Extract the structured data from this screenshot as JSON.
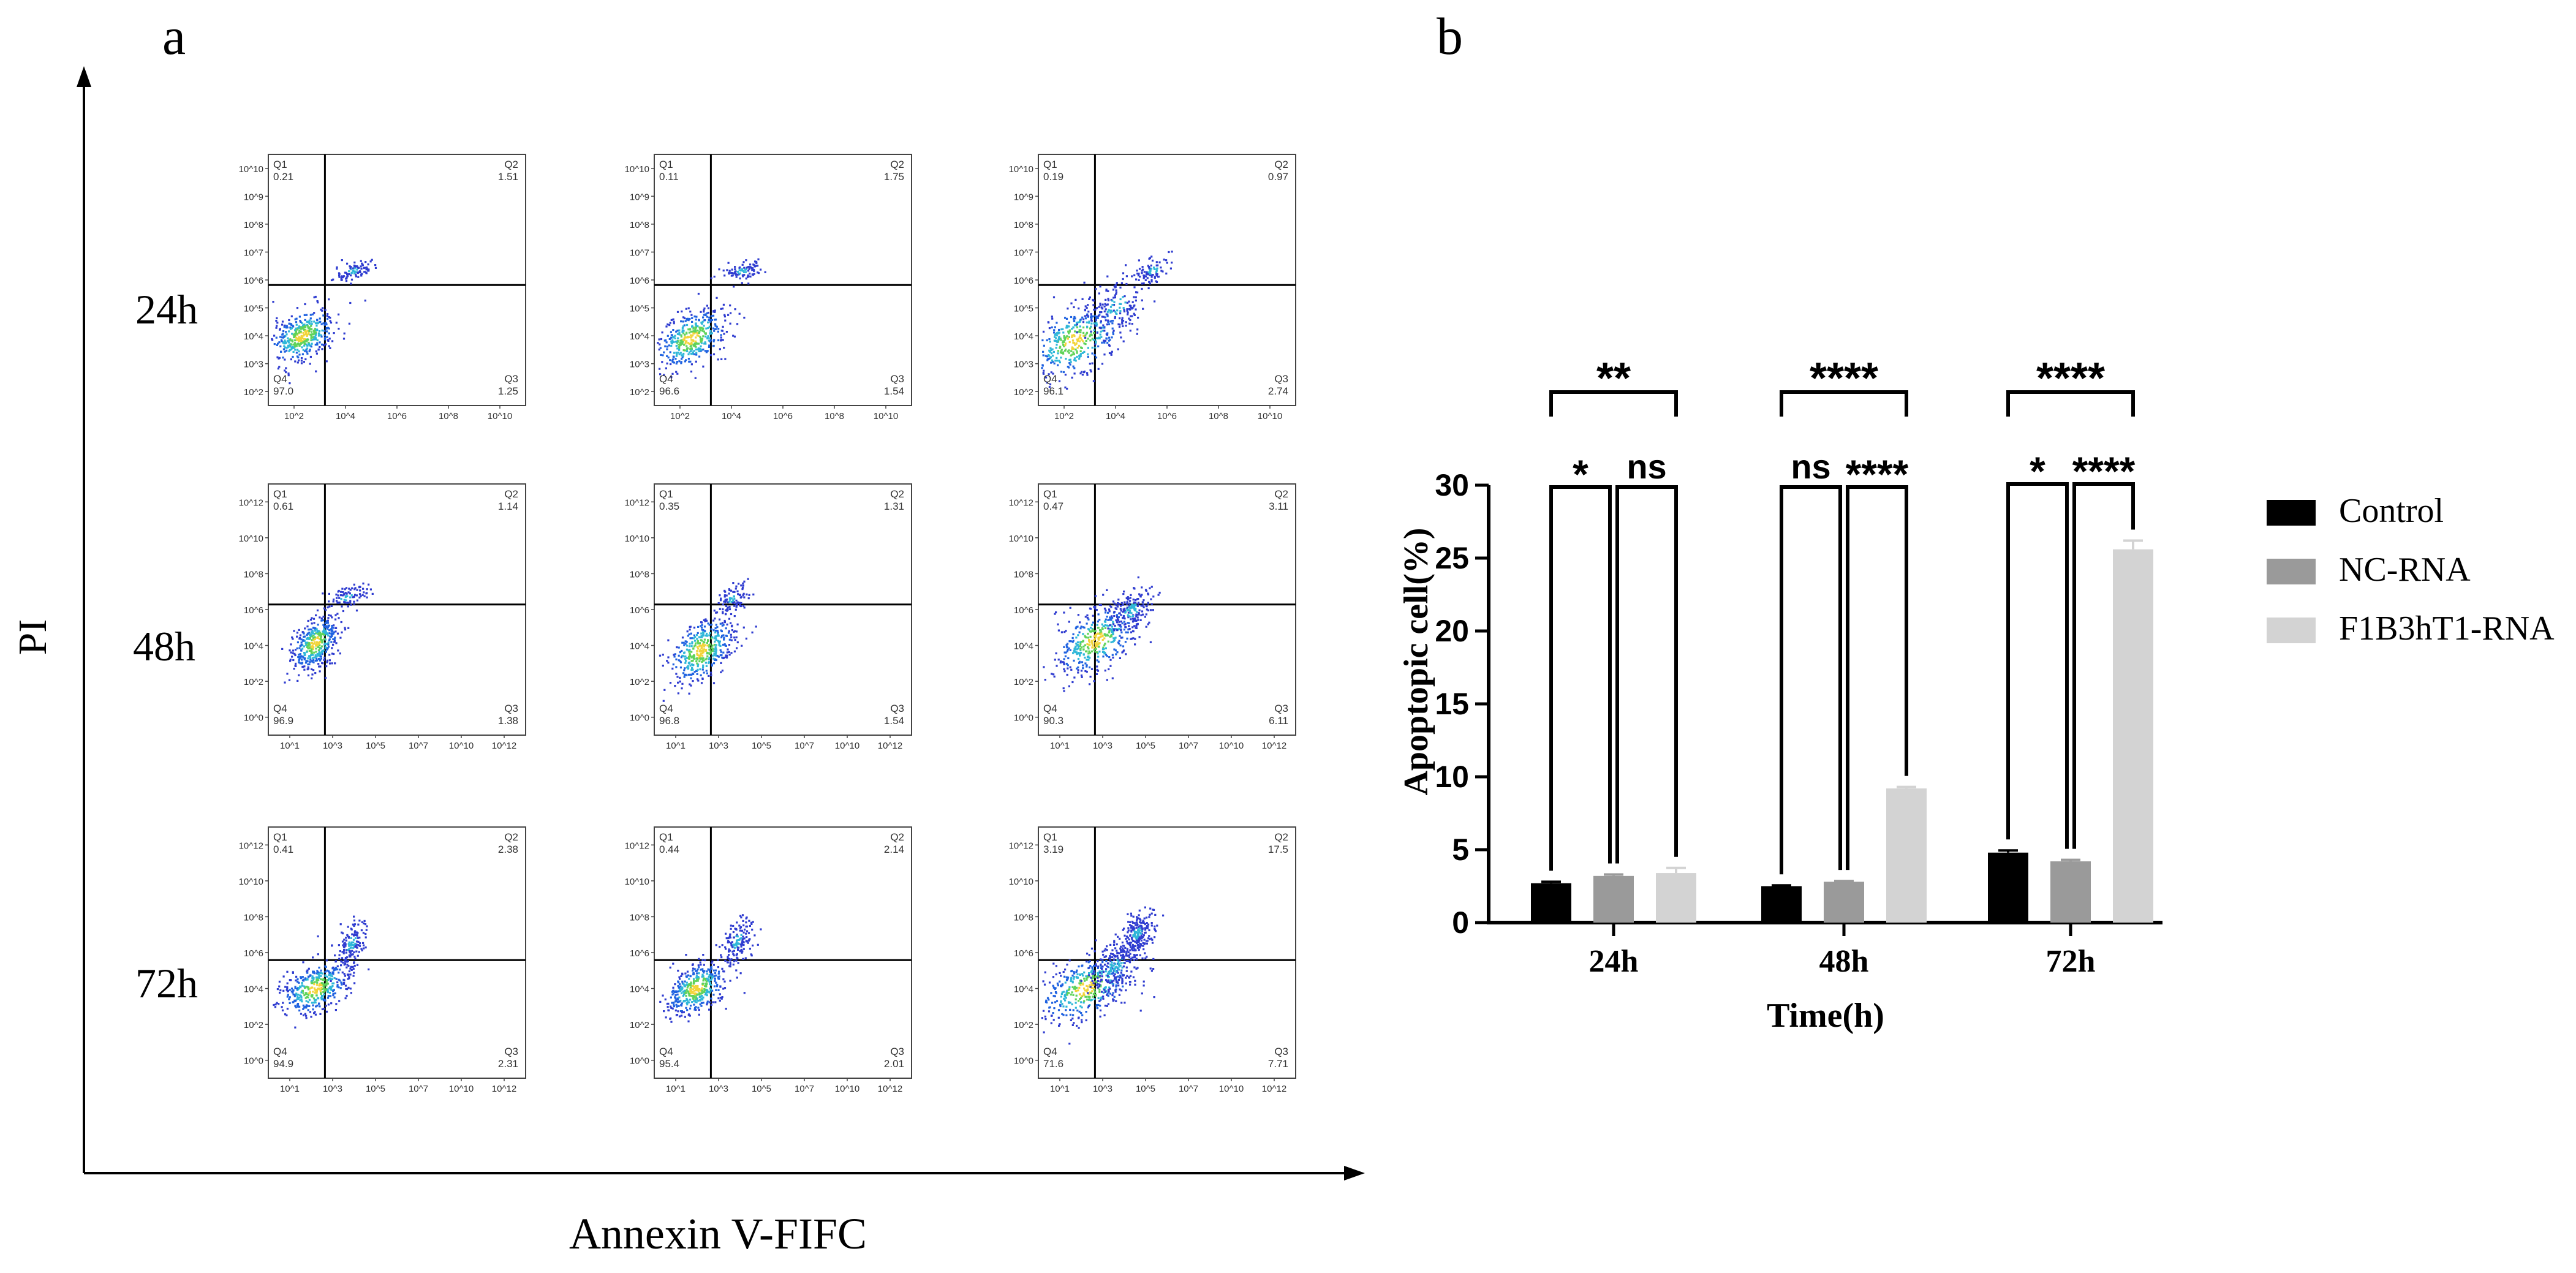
{
  "panel_a": {
    "label": "a",
    "x_axis_label": "Annexin V-FIFC",
    "y_axis_label": "PI",
    "row_labels": [
      "24h",
      "48h",
      "72h"
    ],
    "quadrant_names": [
      "Q1",
      "Q2",
      "Q3",
      "Q4"
    ],
    "plots": [
      {
        "row": 0,
        "col": 0,
        "Q1": "0.21",
        "Q2": "1.51",
        "Q3": "1.25",
        "Q4": "97.0"
      },
      {
        "row": 0,
        "col": 1,
        "Q1": "0.11",
        "Q2": "1.75",
        "Q3": "1.54",
        "Q4": "96.6"
      },
      {
        "row": 0,
        "col": 2,
        "Q1": "0.19",
        "Q2": "0.97",
        "Q3": "2.74",
        "Q4": "96.1"
      },
      {
        "row": 1,
        "col": 0,
        "Q1": "0.61",
        "Q2": "1.14",
        "Q3": "1.38",
        "Q4": "96.9"
      },
      {
        "row": 1,
        "col": 1,
        "Q1": "0.35",
        "Q2": "1.31",
        "Q3": "1.54",
        "Q4": "96.8"
      },
      {
        "row": 1,
        "col": 2,
        "Q1": "0.47",
        "Q2": "3.11",
        "Q3": "6.11",
        "Q4": "90.3"
      },
      {
        "row": 2,
        "col": 0,
        "Q1": "0.41",
        "Q2": "2.38",
        "Q3": "2.31",
        "Q4": "94.9"
      },
      {
        "row": 2,
        "col": 1,
        "Q1": "0.44",
        "Q2": "2.14",
        "Q3": "2.01",
        "Q4": "95.4"
      },
      {
        "row": 2,
        "col": 2,
        "Q1": "3.19",
        "Q2": "17.5",
        "Q3": "7.71",
        "Q4": "71.6"
      }
    ],
    "axis_ticks": {
      "row1_y": [
        "10^2",
        "10^3",
        "10^4",
        "10^5",
        "10^6",
        "10^7",
        "10^8",
        "10^9",
        "10^10"
      ],
      "row1_x": [
        "10^2",
        "10^4",
        "10^6",
        "10^8",
        "10^10"
      ],
      "row23_y": [
        "10^0",
        "10^2",
        "10^4",
        "10^6",
        "10^8",
        "10^10",
        "10^12"
      ],
      "row23_x": [
        "10^1",
        "10^3",
        "10^5",
        "10^7",
        "10^10",
        "10^12"
      ]
    }
  },
  "chart_data": {
    "label": "b",
    "type": "bar",
    "categories": [
      "24h",
      "48h",
      "72h"
    ],
    "series": [
      {
        "name": "Control",
        "color": "#000000",
        "values": [
          2.7,
          2.5,
          4.8
        ],
        "errors": [
          0.1,
          0.05,
          0.15
        ]
      },
      {
        "name": "NC-RNA",
        "color": "#9a9a9a",
        "values": [
          3.2,
          2.8,
          4.2
        ],
        "errors": [
          0.1,
          0.05,
          0.1
        ]
      },
      {
        "name": "F1B3hT1-RNA",
        "color": "#d3d3d3",
        "values": [
          3.4,
          9.2,
          25.6
        ],
        "errors": [
          0.35,
          0.1,
          0.6
        ]
      }
    ],
    "xlabel": "Time(h)",
    "ylabel": "Apoptopic cell(%)",
    "ylim": [
      0,
      30
    ],
    "yticks": [
      0,
      5,
      10,
      15,
      20,
      25,
      30
    ],
    "legend_position": "right",
    "significance": [
      {
        "category": 0,
        "type": "outer",
        "text": "**"
      },
      {
        "category": 0,
        "type": "left",
        "text": "*"
      },
      {
        "category": 0,
        "type": "right",
        "text": "ns"
      },
      {
        "category": 1,
        "type": "outer",
        "text": "****"
      },
      {
        "category": 1,
        "type": "left",
        "text": "ns"
      },
      {
        "category": 1,
        "type": "right",
        "text": "****"
      },
      {
        "category": 2,
        "type": "outer",
        "text": "****"
      },
      {
        "category": 2,
        "type": "left",
        "text": "*"
      },
      {
        "category": 2,
        "type": "right",
        "text": "****"
      }
    ]
  }
}
